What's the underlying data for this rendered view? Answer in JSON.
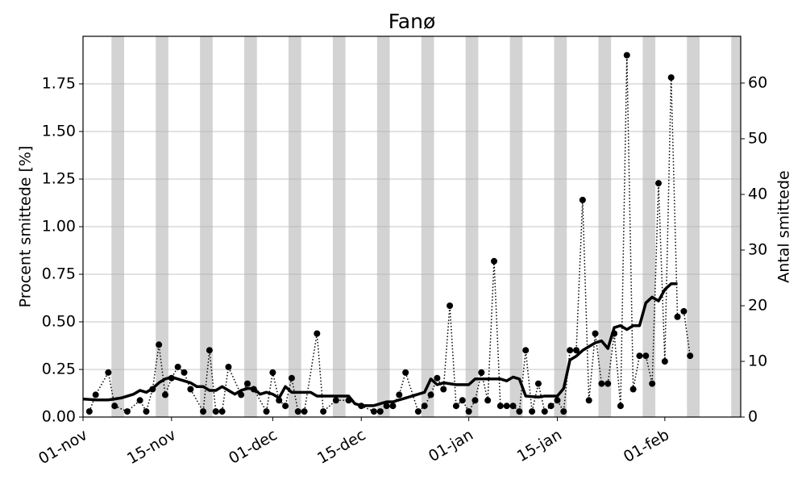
{
  "chart_data": {
    "type": "line",
    "title": "Fanø",
    "y_label": "Procent smittede [%]",
    "y2_label": "Antal smittede",
    "xlim": [
      0,
      104
    ],
    "xticks": [
      {
        "value": 0,
        "label": "01-nov"
      },
      {
        "value": 14,
        "label": "15-nov"
      },
      {
        "value": 30,
        "label": "01-dec"
      },
      {
        "value": 44,
        "label": "15-dec"
      },
      {
        "value": 61,
        "label": "01-jan"
      },
      {
        "value": 75,
        "label": "15-jan"
      },
      {
        "value": 92,
        "label": "01-feb"
      }
    ],
    "ylim": [
      0,
      2.0
    ],
    "yticks": [
      {
        "value": 0,
        "label": "0.00"
      },
      0.25,
      {
        "value": 0.5,
        "label": "0.50"
      },
      0.75,
      {
        "value": 1,
        "label": "1.00"
      },
      1.25,
      {
        "value": 1.5,
        "label": "1.50"
      },
      1.75
    ],
    "y2lim": [
      0,
      68.4
    ],
    "y2ticks": [
      0,
      10,
      20,
      30,
      40,
      50,
      60
    ],
    "grid": true,
    "shaded_color": "#d3d3d3",
    "shaded_spans": [
      [
        4.5,
        6.5
      ],
      [
        11.5,
        13.5
      ],
      [
        18.5,
        20.5
      ],
      [
        25.5,
        27.5
      ],
      [
        32.5,
        34.5
      ],
      [
        39.5,
        41.5
      ],
      [
        46.5,
        48.5
      ],
      [
        53.5,
        55.5
      ],
      [
        60.5,
        62.5
      ],
      [
        67.5,
        69.5
      ],
      [
        74.5,
        76.5
      ],
      [
        81.5,
        83.5
      ],
      [
        88.5,
        90.5
      ],
      [
        95.5,
        97.5
      ],
      [
        102.5,
        104.5
      ]
    ],
    "series": [
      {
        "color": "#000000",
        "linestyle": "solid",
        "axis": "y",
        "x": [
          0,
          2,
          4,
          6,
          8,
          9,
          10,
          11,
          12,
          13,
          14,
          15,
          16,
          17,
          18,
          19,
          20,
          21,
          22,
          23,
          24,
          25,
          26,
          27,
          28,
          29,
          30,
          31,
          32,
          33,
          34,
          35,
          36,
          37,
          38,
          40,
          42,
          43,
          44,
          46,
          47,
          48,
          49,
          50,
          51,
          53,
          54,
          55,
          56,
          57,
          59,
          61,
          62,
          64,
          66,
          67,
          68,
          69,
          70,
          72,
          73,
          75,
          76,
          77,
          78,
          79,
          80,
          81,
          82,
          83,
          84,
          85,
          86,
          87,
          88,
          89,
          90,
          91,
          92,
          93,
          94
        ],
        "values": [
          0.095,
          0.09,
          0.09,
          0.1,
          0.12,
          0.14,
          0.13,
          0.15,
          0.18,
          0.2,
          0.21,
          0.2,
          0.19,
          0.18,
          0.16,
          0.16,
          0.14,
          0.14,
          0.16,
          0.14,
          0.12,
          0.14,
          0.15,
          0.15,
          0.12,
          0.13,
          0.12,
          0.1,
          0.16,
          0.13,
          0.13,
          0.13,
          0.13,
          0.11,
          0.11,
          0.11,
          0.11,
          0.07,
          0.06,
          0.06,
          0.07,
          0.08,
          0.08,
          0.09,
          0.1,
          0.12,
          0.13,
          0.2,
          0.17,
          0.18,
          0.17,
          0.17,
          0.2,
          0.2,
          0.2,
          0.19,
          0.21,
          0.2,
          0.11,
          0.105,
          0.11,
          0.11,
          0.15,
          0.3,
          0.32,
          0.35,
          0.37,
          0.39,
          0.4,
          0.36,
          0.47,
          0.48,
          0.46,
          0.48,
          0.48,
          0.6,
          0.63,
          0.61,
          0.67,
          0.7,
          0.7
        ]
      },
      {
        "color": "#000000",
        "linestyle": "dotted",
        "marker": true,
        "axis": "y2",
        "x": [
          1,
          2,
          4,
          5,
          7,
          9,
          10,
          11,
          12,
          13,
          14,
          15,
          16,
          17,
          19,
          20,
          21,
          22,
          23,
          25,
          26,
          27,
          29,
          30,
          31,
          32,
          33,
          34,
          35,
          37,
          38,
          40,
          42,
          44,
          46,
          47,
          48,
          49,
          50,
          51,
          53,
          54,
          55,
          56,
          57,
          58,
          59,
          60,
          61,
          62,
          63,
          64,
          65,
          66,
          67,
          68,
          69,
          70,
          71,
          72,
          73,
          74,
          75,
          76,
          77,
          78,
          79,
          80,
          81,
          82,
          83,
          84,
          85,
          86,
          87,
          88,
          89,
          90,
          91,
          92,
          93,
          94,
          95,
          96
        ],
        "values": [
          1,
          4,
          8,
          2,
          1,
          3,
          1,
          5,
          13,
          4,
          7,
          9,
          8,
          5,
          1,
          12,
          1,
          1,
          9,
          4,
          6,
          5,
          1,
          8,
          3,
          2,
          7,
          1,
          1,
          15,
          1,
          3,
          3,
          2,
          1,
          1,
          2,
          2,
          4,
          8,
          1,
          2,
          4,
          7,
          5,
          20,
          2,
          3,
          1,
          3,
          8,
          3,
          28,
          2,
          2,
          2,
          1,
          12,
          1,
          6,
          1,
          2,
          3,
          1,
          12,
          12,
          39,
          3,
          15,
          6,
          6,
          15,
          2,
          65,
          5,
          11,
          11,
          6,
          42,
          10,
          61,
          18,
          19,
          11
        ]
      }
    ]
  }
}
